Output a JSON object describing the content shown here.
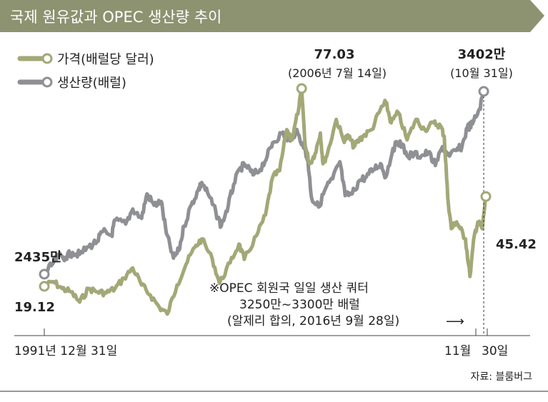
{
  "chart_data": {
    "type": "line",
    "title": "국제 원유값과 OPEC 생산량 추이",
    "source": "자료: 블룸버그",
    "legend": {
      "placement": "top-left",
      "items": [
        "가격(배럴당 달러)",
        "생산량(배럴)"
      ]
    },
    "colors": {
      "title_bar": "#8d9270",
      "price": "#a3a877",
      "production": "#8f9094"
    },
    "x_axis": {
      "start_label": "1991년 12월 31일",
      "end_label_1": "11월",
      "end_label_2": "30일",
      "range": [
        1992.0,
        2016.95
      ]
    },
    "series": [
      {
        "name": "가격(배럴당 달러)",
        "unit": "달러",
        "points": [
          [
            1992.0,
            19.12
          ],
          [
            1992.5,
            20.5
          ],
          [
            1993.0,
            18.5
          ],
          [
            1993.5,
            17.5
          ],
          [
            1994.0,
            14.5
          ],
          [
            1994.5,
            18.5
          ],
          [
            1995.0,
            17.5
          ],
          [
            1995.5,
            17.2
          ],
          [
            1996.0,
            18.5
          ],
          [
            1996.5,
            21.5
          ],
          [
            1997.0,
            24.5
          ],
          [
            1997.5,
            19.5
          ],
          [
            1998.0,
            16.5
          ],
          [
            1998.5,
            13.0
          ],
          [
            1998.95,
            11.0
          ],
          [
            1999.5,
            19.5
          ],
          [
            2000.0,
            25.5
          ],
          [
            2000.5,
            30.5
          ],
          [
            2000.9,
            33.0
          ],
          [
            2001.5,
            27.0
          ],
          [
            2001.9,
            20.0
          ],
          [
            2002.5,
            26.0
          ],
          [
            2003.0,
            31.5
          ],
          [
            2003.3,
            27.0
          ],
          [
            2004.0,
            34.0
          ],
          [
            2004.5,
            40.0
          ],
          [
            2004.9,
            51.0
          ],
          [
            2005.3,
            53.0
          ],
          [
            2005.7,
            65.0
          ],
          [
            2006.0,
            62.0
          ],
          [
            2006.4,
            72.0
          ],
          [
            2006.54,
            77.03
          ],
          [
            2006.75,
            60.0
          ],
          [
            2007.0,
            55.0
          ],
          [
            2007.3,
            58.0
          ],
          [
            2007.6,
            64.0
          ],
          [
            2007.75,
            55.0
          ],
          [
            2008.0,
            58.0
          ],
          [
            2008.5,
            68.0
          ],
          [
            2008.9,
            62.0
          ],
          [
            2009.2,
            63.0
          ],
          [
            2009.5,
            60.0
          ],
          [
            2009.8,
            62.0
          ],
          [
            2010.0,
            63.0
          ],
          [
            2010.5,
            65.0
          ],
          [
            2011.0,
            71.0
          ],
          [
            2011.3,
            73.0
          ],
          [
            2011.6,
            67.0
          ],
          [
            2012.0,
            70.0
          ],
          [
            2012.5,
            62.0
          ],
          [
            2013.0,
            68.0
          ],
          [
            2013.5,
            65.0
          ],
          [
            2014.0,
            67.0
          ],
          [
            2014.4,
            66.0
          ],
          [
            2014.6,
            63.0
          ],
          [
            2014.8,
            45.0
          ],
          [
            2015.0,
            36.0
          ],
          [
            2015.3,
            38.0
          ],
          [
            2015.5,
            36.0
          ],
          [
            2015.8,
            33.0
          ],
          [
            2016.05,
            22.0
          ],
          [
            2016.3,
            34.0
          ],
          [
            2016.5,
            38.0
          ],
          [
            2016.75,
            36.0
          ],
          [
            2016.95,
            45.42
          ]
        ],
        "annotations": [
          {
            "label": "19.12",
            "x": 1992.0,
            "y": 19.12
          },
          {
            "value": "77.03",
            "date": "(2006년 7월 14일)",
            "x": 2006.54,
            "y": 77.03
          },
          {
            "label": "45.42",
            "x": 2016.95,
            "y": 45.42
          }
        ]
      },
      {
        "name": "생산량(배럴)",
        "unit": "만 배럴",
        "points": [
          [
            1992.0,
            2435
          ],
          [
            1992.4,
            2480
          ],
          [
            1992.8,
            2530
          ],
          [
            1993.2,
            2525
          ],
          [
            1993.6,
            2550
          ],
          [
            1994.0,
            2540
          ],
          [
            1994.5,
            2580
          ],
          [
            1995.0,
            2610
          ],
          [
            1995.3,
            2660
          ],
          [
            1995.8,
            2640
          ],
          [
            1996.0,
            2720
          ],
          [
            1996.6,
            2700
          ],
          [
            1997.0,
            2780
          ],
          [
            1997.5,
            2730
          ],
          [
            1997.8,
            2860
          ],
          [
            1998.2,
            2800
          ],
          [
            1998.6,
            2820
          ],
          [
            1998.9,
            2650
          ],
          [
            1999.3,
            2520
          ],
          [
            1999.6,
            2560
          ],
          [
            1999.9,
            2690
          ],
          [
            2000.3,
            2800
          ],
          [
            2000.7,
            2880
          ],
          [
            2000.9,
            2920
          ],
          [
            2001.3,
            2850
          ],
          [
            2001.7,
            2760
          ],
          [
            2002.0,
            2690
          ],
          [
            2002.4,
            2800
          ],
          [
            2002.7,
            2910
          ],
          [
            2003.1,
            3000
          ],
          [
            2003.4,
            3010
          ],
          [
            2003.8,
            2960
          ],
          [
            2004.2,
            2990
          ],
          [
            2004.6,
            3060
          ],
          [
            2004.9,
            3130
          ],
          [
            2005.4,
            3180
          ],
          [
            2005.9,
            3140
          ],
          [
            2006.2,
            3190
          ],
          [
            2006.6,
            3130
          ],
          [
            2006.9,
            3030
          ],
          [
            2007.1,
            2840
          ],
          [
            2007.5,
            2790
          ],
          [
            2007.9,
            2890
          ],
          [
            2008.3,
            2940
          ],
          [
            2008.7,
            3030
          ],
          [
            2009.0,
            2850
          ],
          [
            2009.4,
            2860
          ],
          [
            2009.8,
            2930
          ],
          [
            2010.2,
            2950
          ],
          [
            2010.6,
            2990
          ],
          [
            2011.0,
            3020
          ],
          [
            2011.3,
            2950
          ],
          [
            2011.7,
            3100
          ],
          [
            2012.1,
            3140
          ],
          [
            2012.5,
            3060
          ],
          [
            2012.9,
            3070
          ],
          [
            2013.3,
            3060
          ],
          [
            2013.7,
            3080
          ],
          [
            2014.1,
            3010
          ],
          [
            2014.5,
            3110
          ],
          [
            2014.9,
            3060
          ],
          [
            2015.3,
            3090
          ],
          [
            2015.6,
            3110
          ],
          [
            2015.9,
            3210
          ],
          [
            2016.2,
            3230
          ],
          [
            2016.6,
            3310
          ],
          [
            2016.83,
            3402
          ]
        ],
        "annotations": [
          {
            "label": "2435만",
            "x": 1992.0,
            "y": 2435
          },
          {
            "value": "3402만",
            "date": "(10월 31일)",
            "x": 2016.83,
            "y": 3402
          }
        ]
      }
    ],
    "note": {
      "line1": "※OPEC 회원국 일일 생산 쿼터",
      "line2": "3250만~3300만 배럴",
      "line3": "(알제리 합의, 2016년 9월 28일)",
      "arrow": "⟶"
    }
  }
}
